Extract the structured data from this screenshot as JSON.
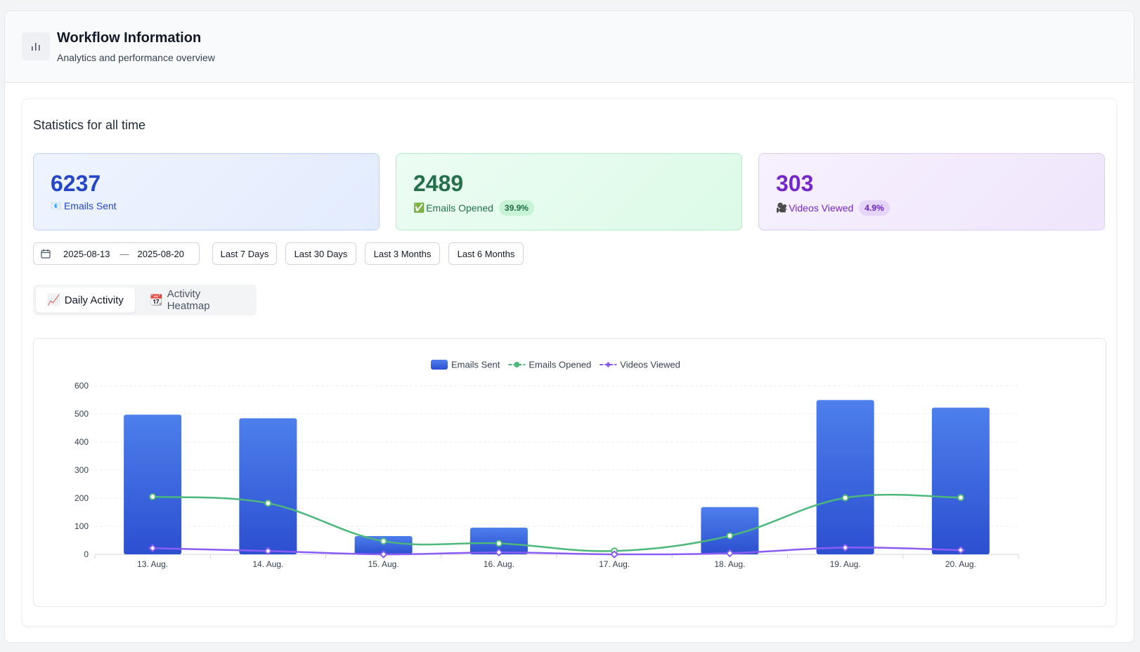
{
  "header": {
    "title": "Workflow Information",
    "subtitle": "Analytics and performance overview",
    "icon": "bar-chart-icon"
  },
  "stats": {
    "section_title": "Statistics for all time",
    "emails_sent": {
      "value": "6237",
      "label": "Emails Sent",
      "icon": "📧"
    },
    "emails_opened": {
      "value": "2489",
      "label": "Emails Opened",
      "icon": "✅",
      "percent": "39.9%"
    },
    "videos_viewed": {
      "value": "303",
      "label": "Videos Viewed",
      "icon": "🎥",
      "percent": "4.9%"
    }
  },
  "date_range": {
    "start": "2025-08-13",
    "separator": "—",
    "end": "2025-08-20",
    "icon": "calendar-icon"
  },
  "quick_ranges": [
    "Last 7 Days",
    "Last 30 Days",
    "Last 3 Months",
    "Last 6 Months"
  ],
  "tabs": [
    {
      "icon": "📈",
      "label": "Daily Activity",
      "active": true
    },
    {
      "icon": "📆",
      "label": "Activity Heatmap",
      "active": false
    }
  ],
  "colors": {
    "bar": "#3b5fe0",
    "opened": "#4cb87a",
    "videos": "#8b5cf6"
  },
  "chart_data": {
    "type": "bar",
    "categories": [
      "13. Aug.",
      "14. Aug.",
      "15. Aug.",
      "16. Aug.",
      "17. Aug.",
      "18. Aug.",
      "19. Aug.",
      "20. Aug."
    ],
    "ylim": [
      0,
      600
    ],
    "yticks": [
      0,
      100,
      200,
      300,
      400,
      500,
      600
    ],
    "legend_position": "top-center",
    "grid": true,
    "series": [
      {
        "name": "Emails Sent",
        "kind": "bar",
        "values": [
          497,
          484,
          65,
          95,
          0,
          168,
          549,
          522
        ]
      },
      {
        "name": "Emails Opened",
        "kind": "line",
        "marker": "circle",
        "values": [
          205,
          182,
          47,
          39,
          12,
          66,
          201,
          202
        ]
      },
      {
        "name": "Videos Viewed",
        "kind": "line",
        "marker": "diamond",
        "values": [
          22,
          12,
          0,
          7,
          0,
          4,
          24,
          15
        ]
      }
    ]
  }
}
